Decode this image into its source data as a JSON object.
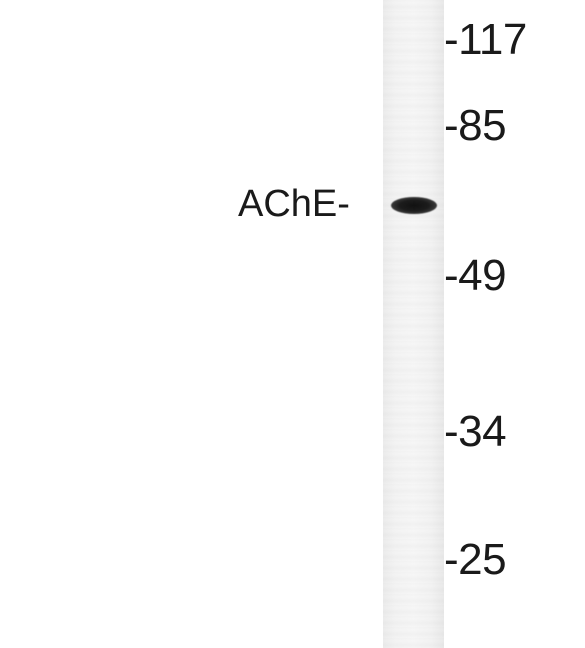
{
  "figure": {
    "band_label": "AChE-",
    "markers": [
      {
        "id": "117",
        "text": "-117"
      },
      {
        "id": "85",
        "text": "-85"
      },
      {
        "id": "49",
        "text": "-49"
      },
      {
        "id": "34",
        "text": "-34"
      },
      {
        "id": "25",
        "text": "-25"
      }
    ],
    "colors": {
      "background": "#ffffff",
      "lane": "#f3f3f3",
      "band": "#161616",
      "text": "#1a1a1a"
    }
  }
}
